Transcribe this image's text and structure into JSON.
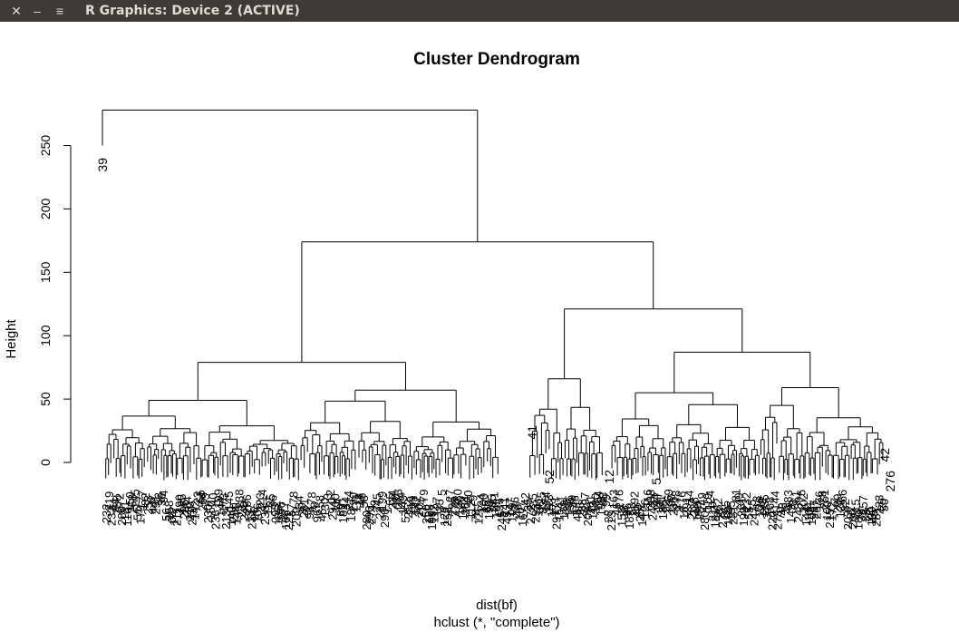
{
  "window": {
    "title": "R Graphics: Device 2 (ACTIVE)",
    "close_icon": "✕",
    "minimize_icon": "–",
    "menu_icon": "≡"
  },
  "chart_data": {
    "type": "dendrogram",
    "title": "Cluster Dendrogram",
    "xlabel": "dist(bf)",
    "sub": "hclust (*, \"complete\")",
    "ylabel": "Height",
    "yticks": [
      0,
      50,
      100,
      150,
      200,
      250
    ],
    "ylim": [
      0,
      290
    ],
    "leaf_count": 300,
    "highlighted_leaves": [
      "39",
      "41",
      "52",
      "12",
      "5",
      "42",
      "276"
    ],
    "merges": [
      {
        "height": 278,
        "left": "39",
        "right": "rest"
      },
      {
        "height": 174,
        "left": "A",
        "right": "B"
      },
      {
        "height": 79,
        "cluster": "A"
      },
      {
        "height": 121,
        "cluster": "B"
      },
      {
        "height": 87,
        "cluster": "B2"
      },
      {
        "height": 66,
        "cluster": "B1"
      },
      {
        "height": 59,
        "cluster": "B2b"
      },
      {
        "height": 57,
        "cluster": "A2"
      },
      {
        "height": 55,
        "cluster": "B2a"
      },
      {
        "height": 49,
        "cluster": "A1"
      }
    ]
  }
}
